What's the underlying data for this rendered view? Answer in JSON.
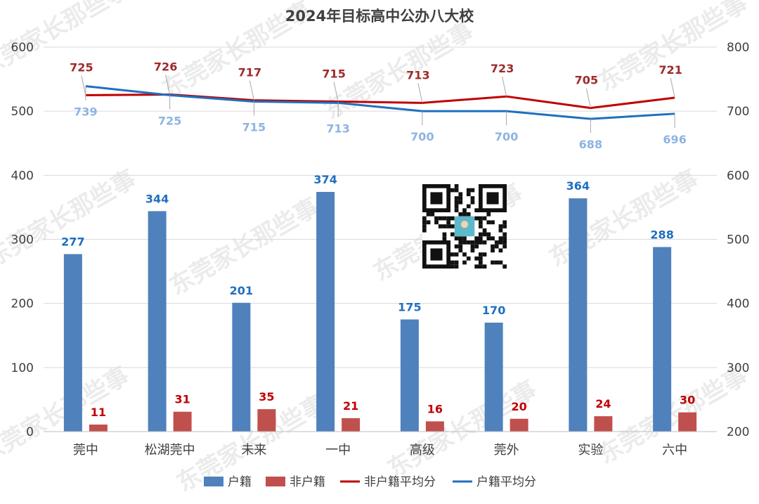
{
  "chart_data": {
    "type": "bar",
    "title": "2024年目标高中公办八大校",
    "categories": [
      "莞中",
      "松湖莞中",
      "未来",
      "一中",
      "高级",
      "莞外",
      "实验",
      "六中"
    ],
    "left_axis": {
      "ylim": [
        0,
        600
      ],
      "ticks": [
        0,
        100,
        200,
        300,
        400,
        500,
        600
      ]
    },
    "right_axis": {
      "ylim": [
        200,
        800
      ],
      "ticks": [
        200,
        300,
        400,
        500,
        600,
        700,
        800
      ]
    },
    "grid": true,
    "legend_position": "bottom",
    "series": [
      {
        "name": "户籍",
        "type": "bar",
        "axis": "left",
        "color": "#4f81bd",
        "label_color": "#1f6fc0",
        "values": [
          277,
          344,
          201,
          374,
          175,
          170,
          364,
          288
        ]
      },
      {
        "name": "非户籍",
        "type": "bar",
        "axis": "left",
        "color": "#c0504d",
        "label_color": "#c00000",
        "values": [
          11,
          31,
          35,
          21,
          16,
          20,
          24,
          30
        ]
      },
      {
        "name": "非户籍平均分",
        "type": "line",
        "axis": "right",
        "color": "#c00000",
        "label_color": "#9e2a2a",
        "values": [
          725,
          726,
          717,
          715,
          713,
          723,
          705,
          721
        ]
      },
      {
        "name": "户籍平均分",
        "type": "line",
        "axis": "right",
        "color": "#1f6fc0",
        "label_color": "#8db4e2",
        "values": [
          739,
          725,
          715,
          713,
          700,
          700,
          688,
          696
        ]
      }
    ]
  },
  "watermark": "东莞家长那些事",
  "qr_icon": "qr-code-icon"
}
